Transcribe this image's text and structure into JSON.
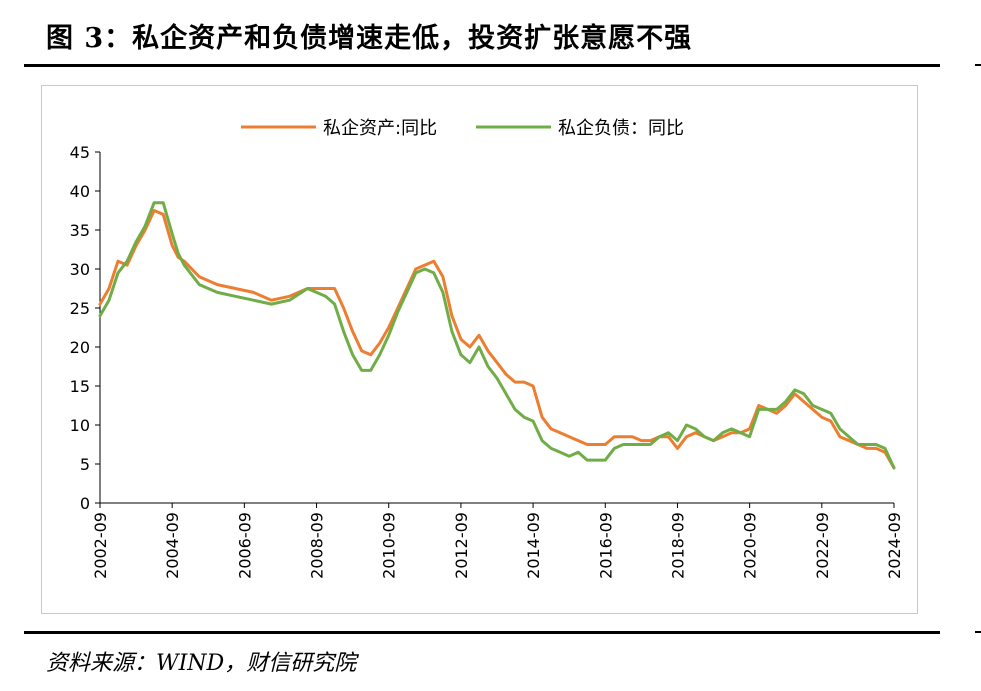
{
  "title": "图 3：私企资产和负债增速走低，投资扩张意愿不强",
  "source": "资料来源：WIND，财信研究院",
  "chart_data": {
    "type": "line",
    "title": "",
    "xlabel": "",
    "ylabel": "",
    "ylim": [
      0,
      45
    ],
    "yticks": [
      0,
      5,
      10,
      15,
      20,
      25,
      30,
      35,
      40,
      45
    ],
    "xlim": [
      "2002-09",
      "2024-09"
    ],
    "xticks": [
      "2002-09",
      "2004-09",
      "2006-09",
      "2008-09",
      "2010-09",
      "2012-09",
      "2014-09",
      "2016-09",
      "2018-09",
      "2020-09",
      "2022-09",
      "2024-09"
    ],
    "grid": false,
    "legend": "top-center",
    "series": [
      {
        "name": "私企资产:同比",
        "color": "#ED7D31",
        "points": [
          [
            "2002-09",
            25.5
          ],
          [
            "2002-12",
            27.5
          ],
          [
            "2003-03",
            31.0
          ],
          [
            "2003-06",
            30.5
          ],
          [
            "2003-09",
            33.0
          ],
          [
            "2003-12",
            35.0
          ],
          [
            "2004-03",
            37.5
          ],
          [
            "2004-06",
            37.0
          ],
          [
            "2004-09",
            33.0
          ],
          [
            "2004-11",
            31.5
          ],
          [
            "2005-01",
            31.0
          ],
          [
            "2005-06",
            29.0
          ],
          [
            "2005-12",
            28.0
          ],
          [
            "2006-06",
            27.5
          ],
          [
            "2006-12",
            27.0
          ],
          [
            "2007-06",
            26.0
          ],
          [
            "2007-12",
            26.5
          ],
          [
            "2008-06",
            27.5
          ],
          [
            "2008-12",
            27.5
          ],
          [
            "2009-03",
            27.5
          ],
          [
            "2009-06",
            25.0
          ],
          [
            "2009-09",
            22.0
          ],
          [
            "2009-12",
            19.5
          ],
          [
            "2010-03",
            19.0
          ],
          [
            "2010-06",
            20.5
          ],
          [
            "2010-09",
            22.5
          ],
          [
            "2010-12",
            25.0
          ],
          [
            "2011-03",
            27.5
          ],
          [
            "2011-06",
            30.0
          ],
          [
            "2011-09",
            30.5
          ],
          [
            "2011-12",
            31.0
          ],
          [
            "2012-03",
            29.0
          ],
          [
            "2012-06",
            24.0
          ],
          [
            "2012-09",
            21.0
          ],
          [
            "2012-12",
            20.0
          ],
          [
            "2013-03",
            21.5
          ],
          [
            "2013-06",
            19.5
          ],
          [
            "2013-09",
            18.0
          ],
          [
            "2013-12",
            16.5
          ],
          [
            "2014-03",
            15.5
          ],
          [
            "2014-06",
            15.5
          ],
          [
            "2014-09",
            15.0
          ],
          [
            "2014-12",
            11.0
          ],
          [
            "2015-03",
            9.5
          ],
          [
            "2015-06",
            9.0
          ],
          [
            "2015-09",
            8.5
          ],
          [
            "2015-12",
            8.0
          ],
          [
            "2016-03",
            7.5
          ],
          [
            "2016-06",
            7.5
          ],
          [
            "2016-09",
            7.5
          ],
          [
            "2016-12",
            8.5
          ],
          [
            "2017-03",
            8.5
          ],
          [
            "2017-06",
            8.5
          ],
          [
            "2017-09",
            8.0
          ],
          [
            "2017-12",
            8.0
          ],
          [
            "2018-03",
            8.5
          ],
          [
            "2018-06",
            8.5
          ],
          [
            "2018-09",
            7.0
          ],
          [
            "2018-12",
            8.5
          ],
          [
            "2019-03",
            9.0
          ],
          [
            "2019-06",
            8.5
          ],
          [
            "2019-09",
            8.0
          ],
          [
            "2019-12",
            8.5
          ],
          [
            "2020-03",
            9.0
          ],
          [
            "2020-06",
            9.0
          ],
          [
            "2020-09",
            9.5
          ],
          [
            "2020-12",
            12.5
          ],
          [
            "2021-03",
            12.0
          ],
          [
            "2021-06",
            11.5
          ],
          [
            "2021-09",
            12.5
          ],
          [
            "2021-12",
            14.0
          ],
          [
            "2022-03",
            13.0
          ],
          [
            "2022-06",
            12.0
          ],
          [
            "2022-09",
            11.0
          ],
          [
            "2022-12",
            10.5
          ],
          [
            "2023-03",
            8.5
          ],
          [
            "2023-06",
            8.0
          ],
          [
            "2023-09",
            7.5
          ],
          [
            "2023-12",
            7.0
          ],
          [
            "2024-03",
            7.0
          ],
          [
            "2024-06",
            6.5
          ],
          [
            "2024-09",
            4.5
          ]
        ]
      },
      {
        "name": "私企负债：同比",
        "color": "#70AD47",
        "points": [
          [
            "2002-09",
            24.0
          ],
          [
            "2002-12",
            26.0
          ],
          [
            "2003-03",
            29.5
          ],
          [
            "2003-06",
            31.0
          ],
          [
            "2003-09",
            33.5
          ],
          [
            "2003-12",
            35.5
          ],
          [
            "2004-03",
            38.5
          ],
          [
            "2004-06",
            38.5
          ],
          [
            "2004-09",
            34.5
          ],
          [
            "2004-11",
            32.0
          ],
          [
            "2005-01",
            30.5
          ],
          [
            "2005-06",
            28.0
          ],
          [
            "2005-12",
            27.0
          ],
          [
            "2006-06",
            26.5
          ],
          [
            "2006-12",
            26.0
          ],
          [
            "2007-06",
            25.5
          ],
          [
            "2007-12",
            26.0
          ],
          [
            "2008-06",
            27.5
          ],
          [
            "2008-12",
            26.5
          ],
          [
            "2009-03",
            25.5
          ],
          [
            "2009-06",
            22.0
          ],
          [
            "2009-09",
            19.0
          ],
          [
            "2009-12",
            17.0
          ],
          [
            "2010-03",
            17.0
          ],
          [
            "2010-06",
            19.0
          ],
          [
            "2010-09",
            21.5
          ],
          [
            "2010-12",
            24.5
          ],
          [
            "2011-03",
            27.0
          ],
          [
            "2011-06",
            29.5
          ],
          [
            "2011-09",
            30.0
          ],
          [
            "2011-12",
            29.5
          ],
          [
            "2012-03",
            27.0
          ],
          [
            "2012-06",
            22.0
          ],
          [
            "2012-09",
            19.0
          ],
          [
            "2012-12",
            18.0
          ],
          [
            "2013-03",
            20.0
          ],
          [
            "2013-06",
            17.5
          ],
          [
            "2013-09",
            16.0
          ],
          [
            "2013-12",
            14.0
          ],
          [
            "2014-03",
            12.0
          ],
          [
            "2014-06",
            11.0
          ],
          [
            "2014-09",
            10.5
          ],
          [
            "2014-12",
            8.0
          ],
          [
            "2015-03",
            7.0
          ],
          [
            "2015-06",
            6.5
          ],
          [
            "2015-09",
            6.0
          ],
          [
            "2015-12",
            6.5
          ],
          [
            "2016-03",
            5.5
          ],
          [
            "2016-06",
            5.5
          ],
          [
            "2016-09",
            5.5
          ],
          [
            "2016-12",
            7.0
          ],
          [
            "2017-03",
            7.5
          ],
          [
            "2017-06",
            7.5
          ],
          [
            "2017-09",
            7.5
          ],
          [
            "2017-12",
            7.5
          ],
          [
            "2018-03",
            8.5
          ],
          [
            "2018-06",
            9.0
          ],
          [
            "2018-09",
            8.0
          ],
          [
            "2018-12",
            10.0
          ],
          [
            "2019-03",
            9.5
          ],
          [
            "2019-06",
            8.5
          ],
          [
            "2019-09",
            8.0
          ],
          [
            "2019-12",
            9.0
          ],
          [
            "2020-03",
            9.5
          ],
          [
            "2020-06",
            9.0
          ],
          [
            "2020-09",
            8.5
          ],
          [
            "2020-12",
            12.0
          ],
          [
            "2021-03",
            12.0
          ],
          [
            "2021-06",
            12.0
          ],
          [
            "2021-09",
            13.0
          ],
          [
            "2021-12",
            14.5
          ],
          [
            "2022-03",
            14.0
          ],
          [
            "2022-06",
            12.5
          ],
          [
            "2022-09",
            12.0
          ],
          [
            "2022-12",
            11.5
          ],
          [
            "2023-03",
            9.5
          ],
          [
            "2023-06",
            8.5
          ],
          [
            "2023-09",
            7.5
          ],
          [
            "2023-12",
            7.5
          ],
          [
            "2024-03",
            7.5
          ],
          [
            "2024-06",
            7.0
          ],
          [
            "2024-09",
            4.5
          ]
        ]
      }
    ]
  }
}
